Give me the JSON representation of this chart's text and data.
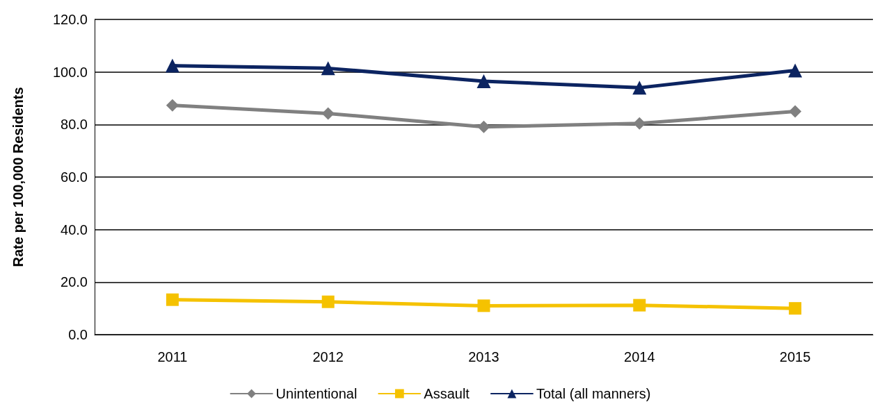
{
  "chart_data": {
    "type": "line",
    "ylabel": "Rate per 100,000 Residents",
    "categories": [
      "2011",
      "2012",
      "2013",
      "2014",
      "2015"
    ],
    "series": [
      {
        "name": "Unintentional",
        "color": "#808080",
        "marker": "diamond",
        "values": [
          87.3,
          84.2,
          79.1,
          80.4,
          85.0
        ]
      },
      {
        "name": "Assault",
        "color": "#f5c200",
        "marker": "square",
        "values": [
          13.3,
          12.5,
          11.0,
          11.2,
          10.0
        ]
      },
      {
        "name": "Total (all manners)",
        "color": "#0c2461",
        "marker": "triangle",
        "values": [
          102.4,
          101.4,
          96.5,
          94.0,
          100.6
        ]
      }
    ],
    "ylim": [
      0,
      120
    ],
    "yticks": [
      {
        "value": 0,
        "label": "0.0"
      },
      {
        "value": 20,
        "label": "20.0"
      },
      {
        "value": 40,
        "label": "40.0"
      },
      {
        "value": 60,
        "label": "60.0"
      },
      {
        "value": 80,
        "label": "80.0"
      },
      {
        "value": 100,
        "label": "100.0"
      },
      {
        "value": 120,
        "label": "120.0"
      }
    ],
    "grid": "y",
    "legend": "bottom",
    "line_style": "solid"
  }
}
